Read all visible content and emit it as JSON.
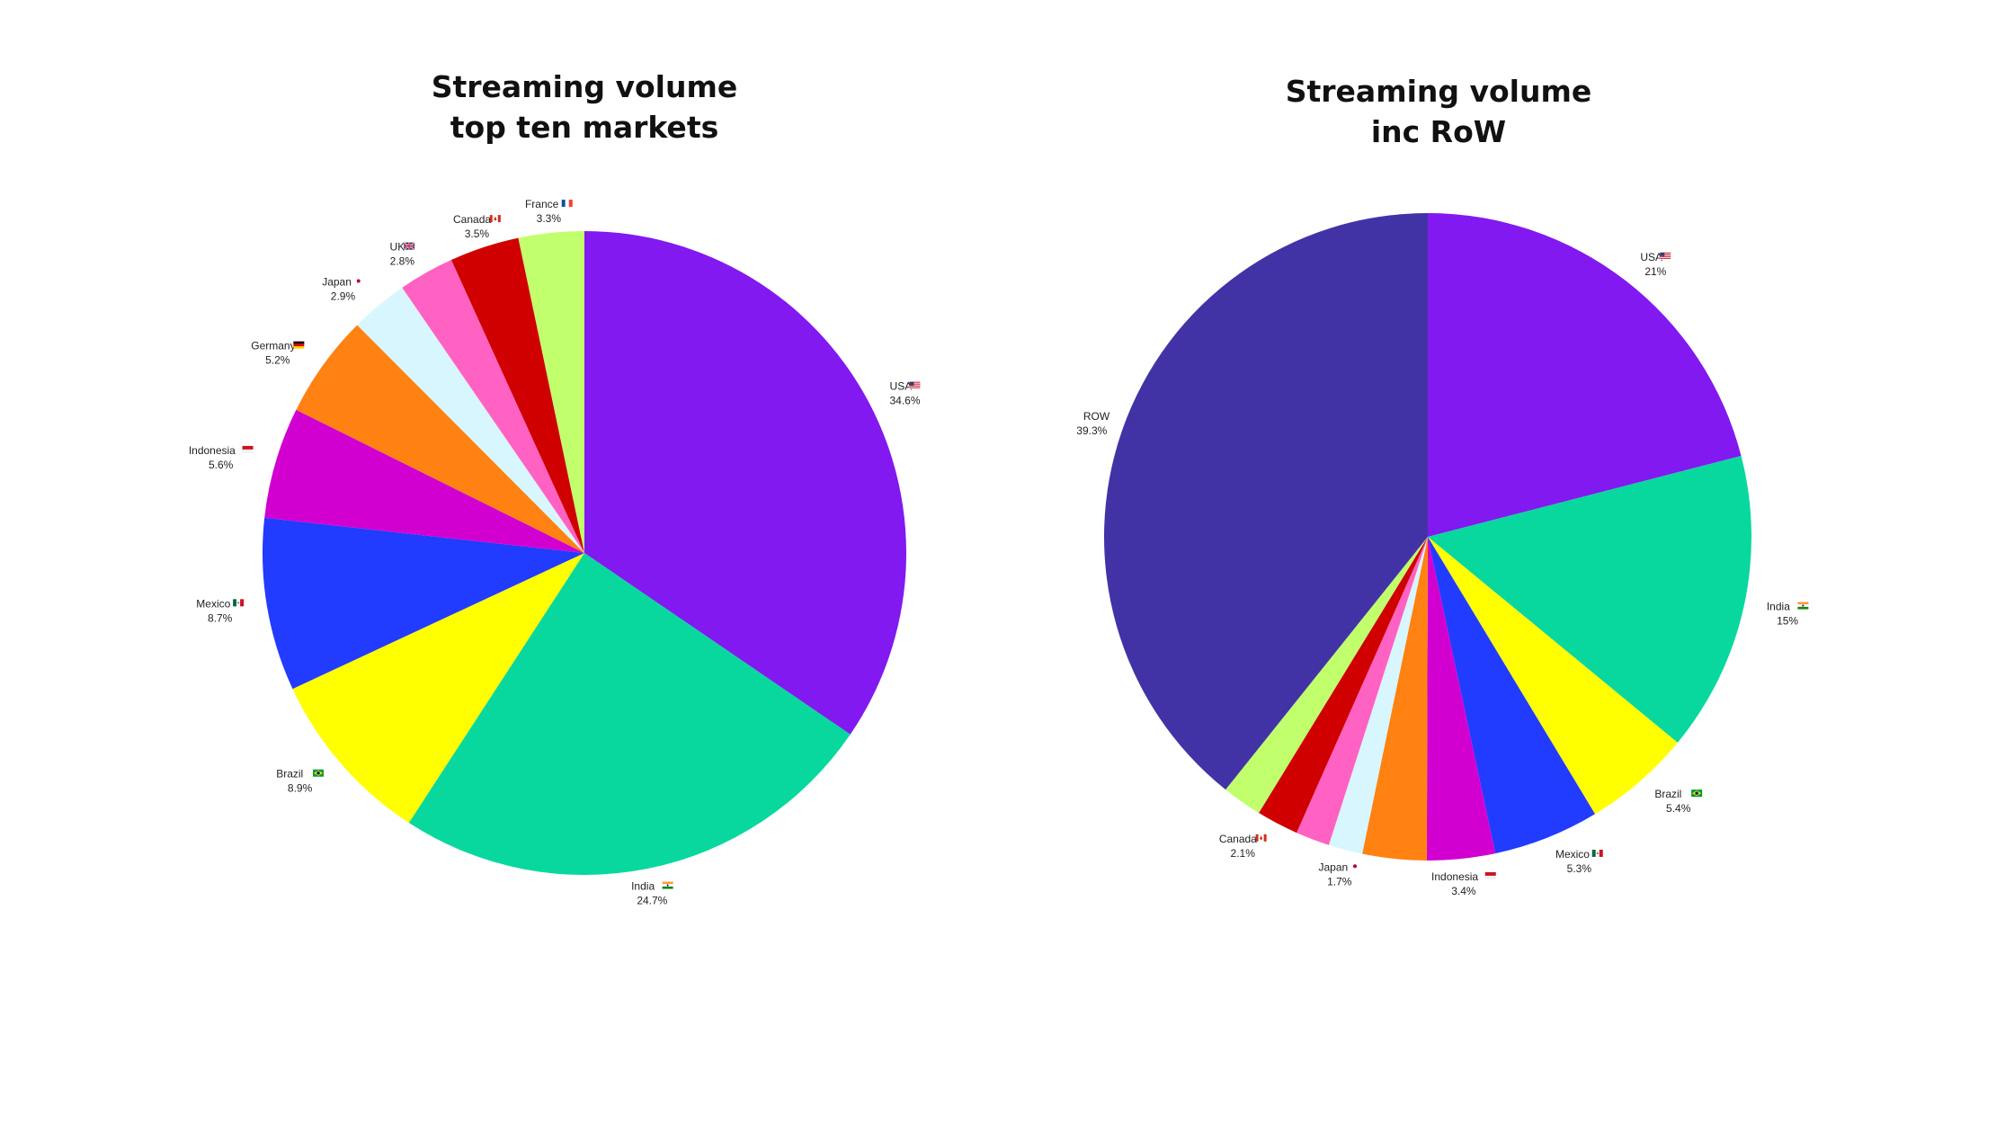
{
  "chart_data": [
    {
      "type": "pie",
      "title": "Streaming volume\ntop ten markets",
      "slices": [
        {
          "name": "USA",
          "value": 34.6,
          "label": "34.6%",
          "color": "#8119f0",
          "flag": "us"
        },
        {
          "name": "India",
          "value": 24.7,
          "label": "24.7%",
          "color": "#08d89e",
          "flag": "in"
        },
        {
          "name": "Brazil",
          "value": 8.9,
          "label": "8.9%",
          "color": "#ffff00",
          "flag": "br"
        },
        {
          "name": "Mexico",
          "value": 8.7,
          "label": "8.7%",
          "color": "#213bff",
          "flag": "mx"
        },
        {
          "name": "Indonesia",
          "value": 5.6,
          "label": "5.6%",
          "color": "#d100d1",
          "flag": "id"
        },
        {
          "name": "Germany",
          "value": 5.2,
          "label": "5.2%",
          "color": "#ff8212",
          "flag": "de"
        },
        {
          "name": "Japan",
          "value": 2.9,
          "label": "2.9%",
          "color": "#d8f6fd",
          "flag": "jp"
        },
        {
          "name": "UK",
          "value": 2.8,
          "label": "2.8%",
          "color": "#ff62c3",
          "flag": "gb"
        },
        {
          "name": "Canada",
          "value": 3.5,
          "label": "3.5%",
          "color": "#d10000",
          "flag": "ca"
        },
        {
          "name": "France",
          "value": 3.3,
          "label": "3.3%",
          "color": "#c1ff6c",
          "flag": "fr"
        }
      ]
    },
    {
      "type": "pie",
      "title": "Streaming volume\ninc RoW",
      "slices": [
        {
          "name": "USA",
          "value": 21,
          "label": "21%",
          "color": "#8119f0",
          "flag": "us"
        },
        {
          "name": "India",
          "value": 15,
          "label": "15%",
          "color": "#08d89e",
          "flag": "in"
        },
        {
          "name": "Brazil",
          "value": 5.4,
          "label": "5.4%",
          "color": "#ffff00",
          "flag": "br"
        },
        {
          "name": "Mexico",
          "value": 5.3,
          "label": "5.3%",
          "color": "#213bff",
          "flag": "mx"
        },
        {
          "name": "Indonesia",
          "value": 3.4,
          "label": "3.4%",
          "color": "#d100d1",
          "flag": "id"
        },
        {
          "name": "",
          "value": 3.2,
          "label": "",
          "color": "#ff8212",
          "flag": ""
        },
        {
          "name": "Japan",
          "value": 1.7,
          "label": "1.7%",
          "color": "#d8f6fd",
          "flag": "jp"
        },
        {
          "name": "",
          "value": 1.7,
          "label": "",
          "color": "#ff62c3",
          "flag": ""
        },
        {
          "name": "Canada",
          "value": 2.1,
          "label": "2.1%",
          "color": "#d10000",
          "flag": "ca"
        },
        {
          "name": "",
          "value": 2.0,
          "label": "",
          "color": "#c1ff6c",
          "flag": ""
        },
        {
          "name": "ROW",
          "value": 39.3,
          "label": "39.3%",
          "color": "#4133a6",
          "flag": ""
        }
      ]
    }
  ]
}
